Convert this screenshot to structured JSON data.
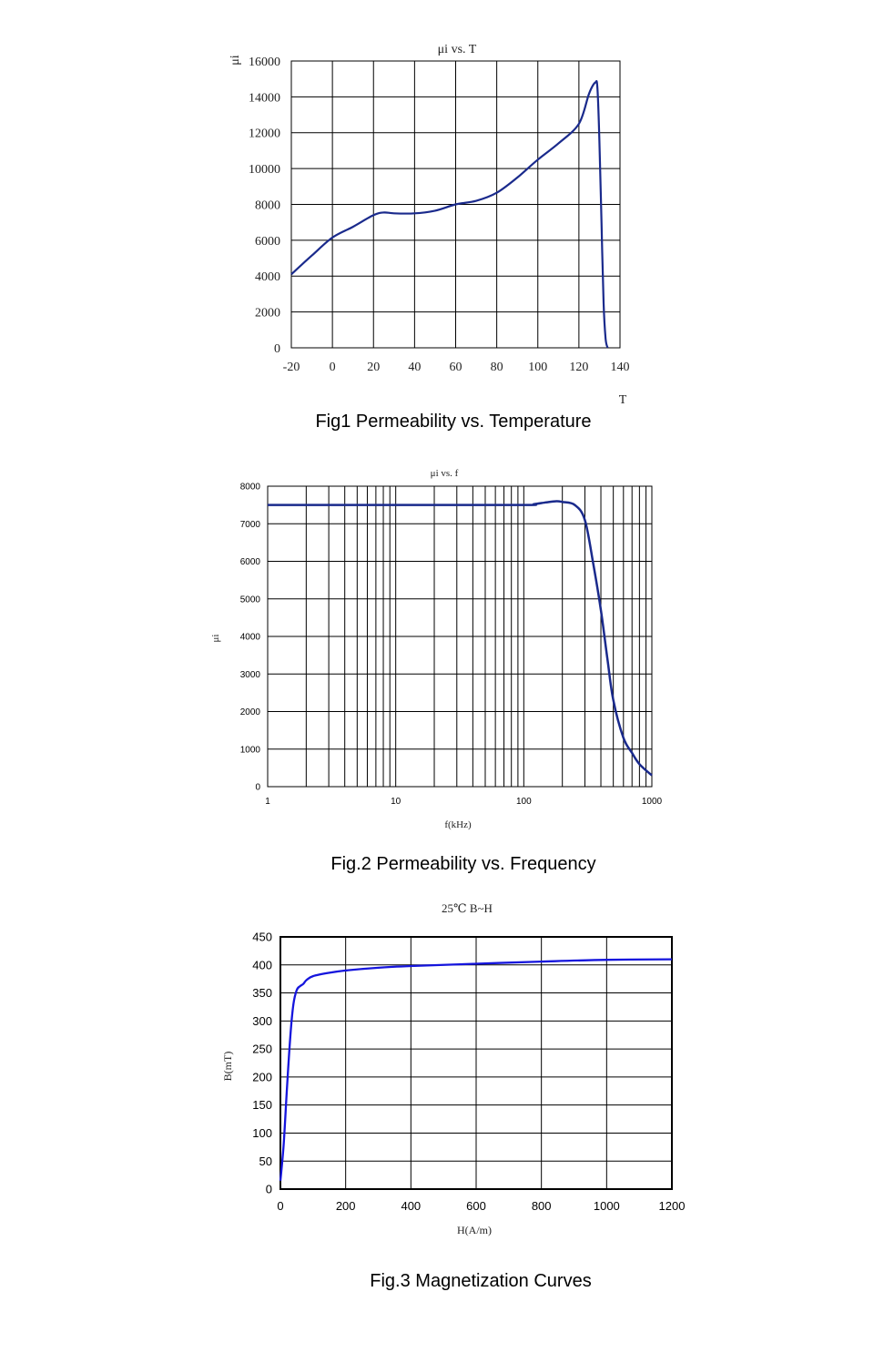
{
  "chart_data": [
    {
      "type": "line",
      "title": "μi vs. T",
      "ylabel": "μi",
      "xlabel": "T",
      "caption": "Fig1 Permeability vs. Temperature",
      "xlim": [
        -20,
        140
      ],
      "ylim": [
        0,
        16000
      ],
      "grid": true,
      "x_ticks": [
        "-20",
        "0",
        "20",
        "40",
        "60",
        "80",
        "100",
        "120",
        "140"
      ],
      "y_ticks": [
        "0",
        "2000",
        "4000",
        "6000",
        "8000",
        "10000",
        "12000",
        "14000",
        "16000"
      ],
      "colors": {
        "line": "#1a2a8c",
        "grid": "#000000"
      },
      "series": [
        {
          "x": [
            -20,
            -10,
            0,
            10,
            20,
            25,
            30,
            40,
            50,
            60,
            70,
            80,
            90,
            100,
            110,
            120,
            125,
            128,
            129,
            130,
            131,
            132,
            133,
            134
          ],
          "y": [
            4100,
            5150,
            6150,
            6750,
            7400,
            7550,
            7500,
            7500,
            7650,
            8000,
            8200,
            8650,
            9500,
            10500,
            11400,
            12500,
            14200,
            14800,
            14500,
            11500,
            7000,
            2500,
            500,
            0
          ]
        }
      ]
    },
    {
      "type": "line",
      "title": "μi vs. f",
      "ylabel": "μi",
      "xlabel": "f(kHz)",
      "caption": "Fig.2 Permeability vs. Frequency",
      "xscale": "log",
      "xlim": [
        1,
        1000
      ],
      "ylim": [
        0,
        8000
      ],
      "grid": true,
      "x_ticks": [
        "1",
        "10",
        "100",
        "1000"
      ],
      "y_ticks": [
        "0",
        "1000",
        "2000",
        "3000",
        "4000",
        "5000",
        "6000",
        "7000",
        "8000"
      ],
      "colors": {
        "line": "#1a2a8c",
        "grid": "#000000"
      },
      "series": [
        {
          "x": [
            1,
            10,
            100,
            120,
            150,
            180,
            200,
            250,
            300,
            350,
            400,
            450,
            500,
            600,
            700,
            800,
            1000
          ],
          "y": [
            7500,
            7500,
            7500,
            7520,
            7570,
            7600,
            7580,
            7500,
            7100,
            5900,
            4700,
            3400,
            2300,
            1300,
            900,
            600,
            300
          ]
        }
      ]
    },
    {
      "type": "line",
      "title": "25℃ B~H",
      "ylabel": "B(mT)",
      "xlabel": "H(A/m)",
      "caption": "Fig.3 Magnetization Curves",
      "xlim": [
        0,
        1200
      ],
      "ylim": [
        0,
        450
      ],
      "grid": true,
      "x_ticks": [
        "0",
        "200",
        "400",
        "600",
        "800",
        "1000",
        "1200"
      ],
      "y_ticks": [
        "0",
        "50",
        "100",
        "150",
        "200",
        "250",
        "300",
        "350",
        "400",
        "450"
      ],
      "colors": {
        "line": "#1515dd",
        "grid": "#000000"
      },
      "series": [
        {
          "x": [
            0,
            10,
            20,
            30,
            40,
            50,
            60,
            70,
            80,
            100,
            150,
            200,
            300,
            400,
            600,
            800,
            1000,
            1200
          ],
          "y": [
            15,
            80,
            180,
            270,
            330,
            355,
            362,
            366,
            373,
            380,
            386,
            390,
            395,
            398,
            402,
            406,
            409,
            410
          ]
        }
      ]
    }
  ]
}
